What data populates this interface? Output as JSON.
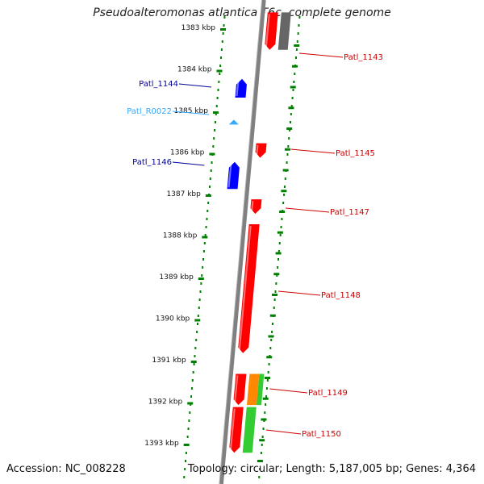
{
  "title": "Pseudoalteromonas atlantica T6c, complete genome",
  "accession_text": "Accession: NC_008228",
  "topology_text": "Topology: circular; Length: 5,187,005 bp; Genes: 4,364",
  "colors": {
    "forward_gene": "#ff0000",
    "reverse_gene": "#0000ff",
    "rna_gene": "#33aaff",
    "backbone": "#808080",
    "gc_dots": "#008000",
    "cog_gray": "#666666",
    "cog_orange": "#ff8800",
    "cog_green": "#33cc33"
  },
  "scale_ticks": [
    {
      "label": "1383 kbp",
      "kbp": 1383
    },
    {
      "label": "1384 kbp",
      "kbp": 1384
    },
    {
      "label": "1385 kbp",
      "kbp": 1385
    },
    {
      "label": "1386 kbp",
      "kbp": 1386
    },
    {
      "label": "1387 kbp",
      "kbp": 1387
    },
    {
      "label": "1388 kbp",
      "kbp": 1388
    },
    {
      "label": "1389 kbp",
      "kbp": 1389
    },
    {
      "label": "1390 kbp",
      "kbp": 1390
    },
    {
      "label": "1391 kbp",
      "kbp": 1391
    },
    {
      "label": "1392 kbp",
      "kbp": 1392
    },
    {
      "label": "1393 kbp",
      "kbp": 1393
    }
  ],
  "genes": [
    {
      "label": "Patl_1143",
      "strand": "+",
      "type": "CDS",
      "start_kbp": 1382.6,
      "end_kbp": 1383.5,
      "cog": "gray"
    },
    {
      "label": "Patl_1144",
      "strand": "-",
      "type": "CDS",
      "start_kbp": 1384.2,
      "end_kbp": 1384.65
    },
    {
      "label": "Patl_R0022",
      "strand": "-",
      "type": "RNA",
      "start_kbp": 1385.18,
      "end_kbp": 1385.3
    },
    {
      "label": "Patl_1145",
      "strand": "+",
      "type": "CDS",
      "start_kbp": 1385.75,
      "end_kbp": 1386.1
    },
    {
      "label": "Patl_1146",
      "strand": "-",
      "type": "CDS",
      "start_kbp": 1386.2,
      "end_kbp": 1386.85
    },
    {
      "label": "Patl_1147",
      "strand": "+",
      "type": "CDS",
      "start_kbp": 1387.1,
      "end_kbp": 1387.45
    },
    {
      "label": "Patl_1148",
      "strand": "+",
      "type": "CDS",
      "start_kbp": 1387.7,
      "end_kbp": 1390.8
    },
    {
      "label": "Patl_1149",
      "strand": "+",
      "type": "CDS",
      "start_kbp": 1391.3,
      "end_kbp": 1392.05,
      "cog": "orange"
    },
    {
      "label": "Patl_1150",
      "strand": "+",
      "type": "CDS",
      "start_kbp": 1392.1,
      "end_kbp": 1393.2,
      "cog": "green"
    }
  ]
}
